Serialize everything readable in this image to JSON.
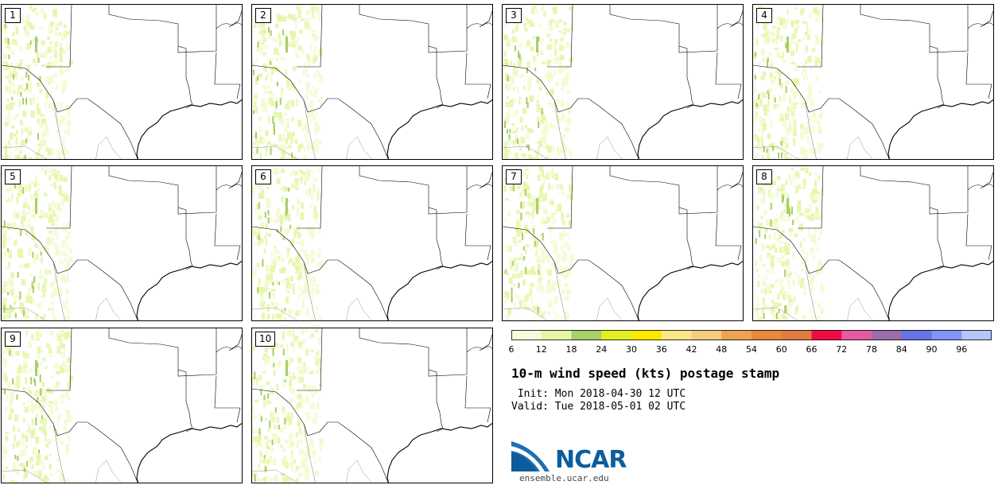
{
  "panels": [
    {
      "label": "1"
    },
    {
      "label": "2"
    },
    {
      "label": "3"
    },
    {
      "label": "4"
    },
    {
      "label": "5"
    },
    {
      "label": "6"
    },
    {
      "label": "7"
    },
    {
      "label": "8"
    },
    {
      "label": "9"
    },
    {
      "label": "10"
    }
  ],
  "colorbar": {
    "ticks": [
      "6",
      "12",
      "18",
      "24",
      "30",
      "36",
      "42",
      "48",
      "54",
      "60",
      "66",
      "72",
      "78",
      "84",
      "90",
      "96"
    ],
    "colors": [
      "#f7fbdc",
      "#e6f5a6",
      "#a7cf6a",
      "#e3ef25",
      "#fde800",
      "#fde58a",
      "#f5cd7f",
      "#eca353",
      "#e8883a",
      "#e07b46",
      "#ef0c44",
      "#e55aa0",
      "#9c6daa",
      "#6773e7",
      "#8193f4",
      "#b4c6f8"
    ]
  },
  "title": "10-m wind speed (kts) postage stamp",
  "init": " Init: Mon 2018-04-30 12 UTC",
  "valid": "Valid: Tue 2018-05-01 02 UTC",
  "logo": {
    "text": "NCAR",
    "url": "ensemble.ucar.edu"
  },
  "colors": {
    "low_wind": "#e6f5a6",
    "lighter": "#f3fad0",
    "mid": "#a7cf6a",
    "border": "#000000",
    "logo_blue": "#0c5d9d"
  }
}
